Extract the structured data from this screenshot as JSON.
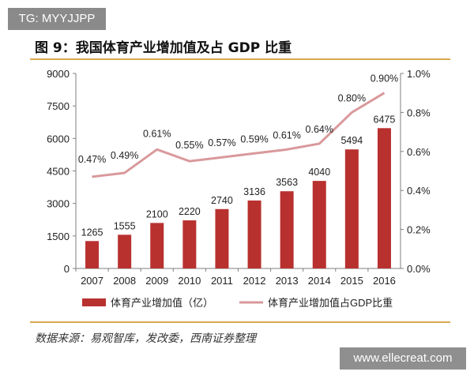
{
  "watermark_top": "TG: MYYJJPP",
  "watermark_bottom": "www.ellecreat.com",
  "figure_title": "图 9：我国体育产业增加值及占 GDP 比重",
  "source": "数据来源：易观智库，发改委，西南证券整理",
  "colors": {
    "bar": "#b8312f",
    "line": "#d9999b",
    "rule": "#d9a84e",
    "axis": "#7f7f7f"
  },
  "chart_data": {
    "type": "bar",
    "title": "",
    "xlabel": "",
    "ylabel": "",
    "categories": [
      "2007",
      "2008",
      "2009",
      "2010",
      "2011",
      "2012",
      "2013",
      "2014",
      "2015",
      "2016"
    ],
    "series": [
      {
        "name": "体育产业增加值（亿）",
        "type": "bar",
        "axis": "left",
        "values": [
          1265,
          1555,
          2100,
          2220,
          2740,
          3136,
          3563,
          4040,
          5494,
          6475
        ],
        "labels": [
          "1265",
          "1555",
          "2100",
          "2220",
          "2740",
          "3136",
          "3563",
          "4040",
          "5494",
          "6475"
        ]
      },
      {
        "name": "体育产业增加值占GDP比重",
        "type": "line",
        "axis": "right",
        "values": [
          0.47,
          0.49,
          0.61,
          0.55,
          0.57,
          0.59,
          0.61,
          0.64,
          0.8,
          0.9
        ],
        "labels": [
          "0.47%",
          "0.49%",
          "0.61%",
          "0.55%",
          "0.57%",
          "0.59%",
          "0.61%",
          "0.64%",
          "0.80%",
          "0.90%"
        ]
      }
    ],
    "ylim": [
      0,
      9000
    ],
    "yticks": [
      "0",
      "1500",
      "3000",
      "4500",
      "6000",
      "7500",
      "9000"
    ],
    "y2lim": [
      0,
      1.0
    ],
    "y2ticks": [
      "0.0%",
      "0.2%",
      "0.4%",
      "0.6%",
      "0.8%",
      "1.0%"
    ],
    "grid": false,
    "legend_position": "bottom"
  }
}
